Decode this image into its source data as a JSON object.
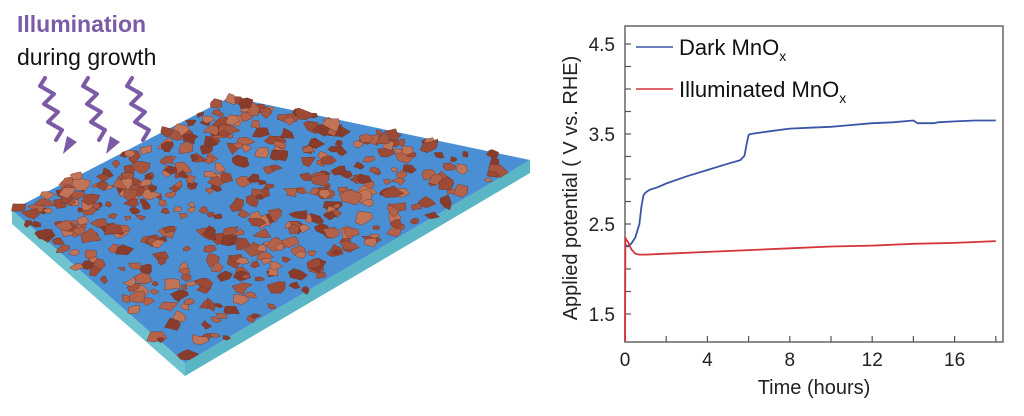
{
  "illustration": {
    "title_line1": "Illumination",
    "title_line2": "during growth",
    "title_color": "#7b5aa6",
    "arrow_color": "#7b5aa6",
    "substrate_color": "#4a8fd4",
    "substrate_side_color": "#6fc3cf",
    "flake_color": "#a0513c"
  },
  "chart_data": {
    "type": "line",
    "title": "",
    "xlabel": "Time (hours)",
    "ylabel": "Applied potential ( V vs. RHE)",
    "xlim": [
      0,
      18.5
    ],
    "ylim": [
      1.2,
      4.75
    ],
    "xticks": [
      0,
      4,
      8,
      12,
      16
    ],
    "xtick_labels": [
      "0",
      "4",
      "8",
      "12",
      "16"
    ],
    "yticks": [
      1.5,
      2.5,
      3.5,
      4.5
    ],
    "ytick_labels": [
      "1.5",
      "2.5",
      "3.5",
      "4.5"
    ],
    "grid": false,
    "legend_position": "top-left",
    "series": [
      {
        "name": "Dark MnOx",
        "label_main": "Dark MnO",
        "label_sub": "x",
        "color": "#3a55a8",
        "x": [
          0,
          0.1,
          0.3,
          0.5,
          0.7,
          0.8,
          0.9,
          1.0,
          1.2,
          1.6,
          2,
          3,
          4,
          5,
          5.6,
          5.8,
          5.9,
          6.0,
          6.1,
          7,
          8,
          9,
          10,
          11,
          12,
          13,
          14,
          14.2,
          15,
          15.2,
          16,
          17,
          18
        ],
        "values": [
          2.28,
          2.25,
          2.28,
          2.35,
          2.5,
          2.7,
          2.82,
          2.85,
          2.88,
          2.91,
          2.95,
          3.03,
          3.1,
          3.17,
          3.21,
          3.26,
          3.38,
          3.49,
          3.5,
          3.53,
          3.56,
          3.57,
          3.58,
          3.6,
          3.62,
          3.63,
          3.65,
          3.62,
          3.62,
          3.63,
          3.64,
          3.65,
          3.65
        ]
      },
      {
        "name": "Illuminated MnOx",
        "label_main": "Illuminated MnO",
        "label_sub": "x",
        "color": "#d4343a",
        "x": [
          0,
          0.02,
          0.05,
          0.15,
          0.3,
          0.5,
          0.7,
          1,
          2,
          4,
          6,
          8,
          10,
          12,
          14,
          16,
          18
        ],
        "values": [
          1.2,
          2.35,
          2.33,
          2.3,
          2.22,
          2.17,
          2.16,
          2.16,
          2.17,
          2.19,
          2.21,
          2.23,
          2.25,
          2.26,
          2.28,
          2.29,
          2.31
        ]
      }
    ]
  }
}
